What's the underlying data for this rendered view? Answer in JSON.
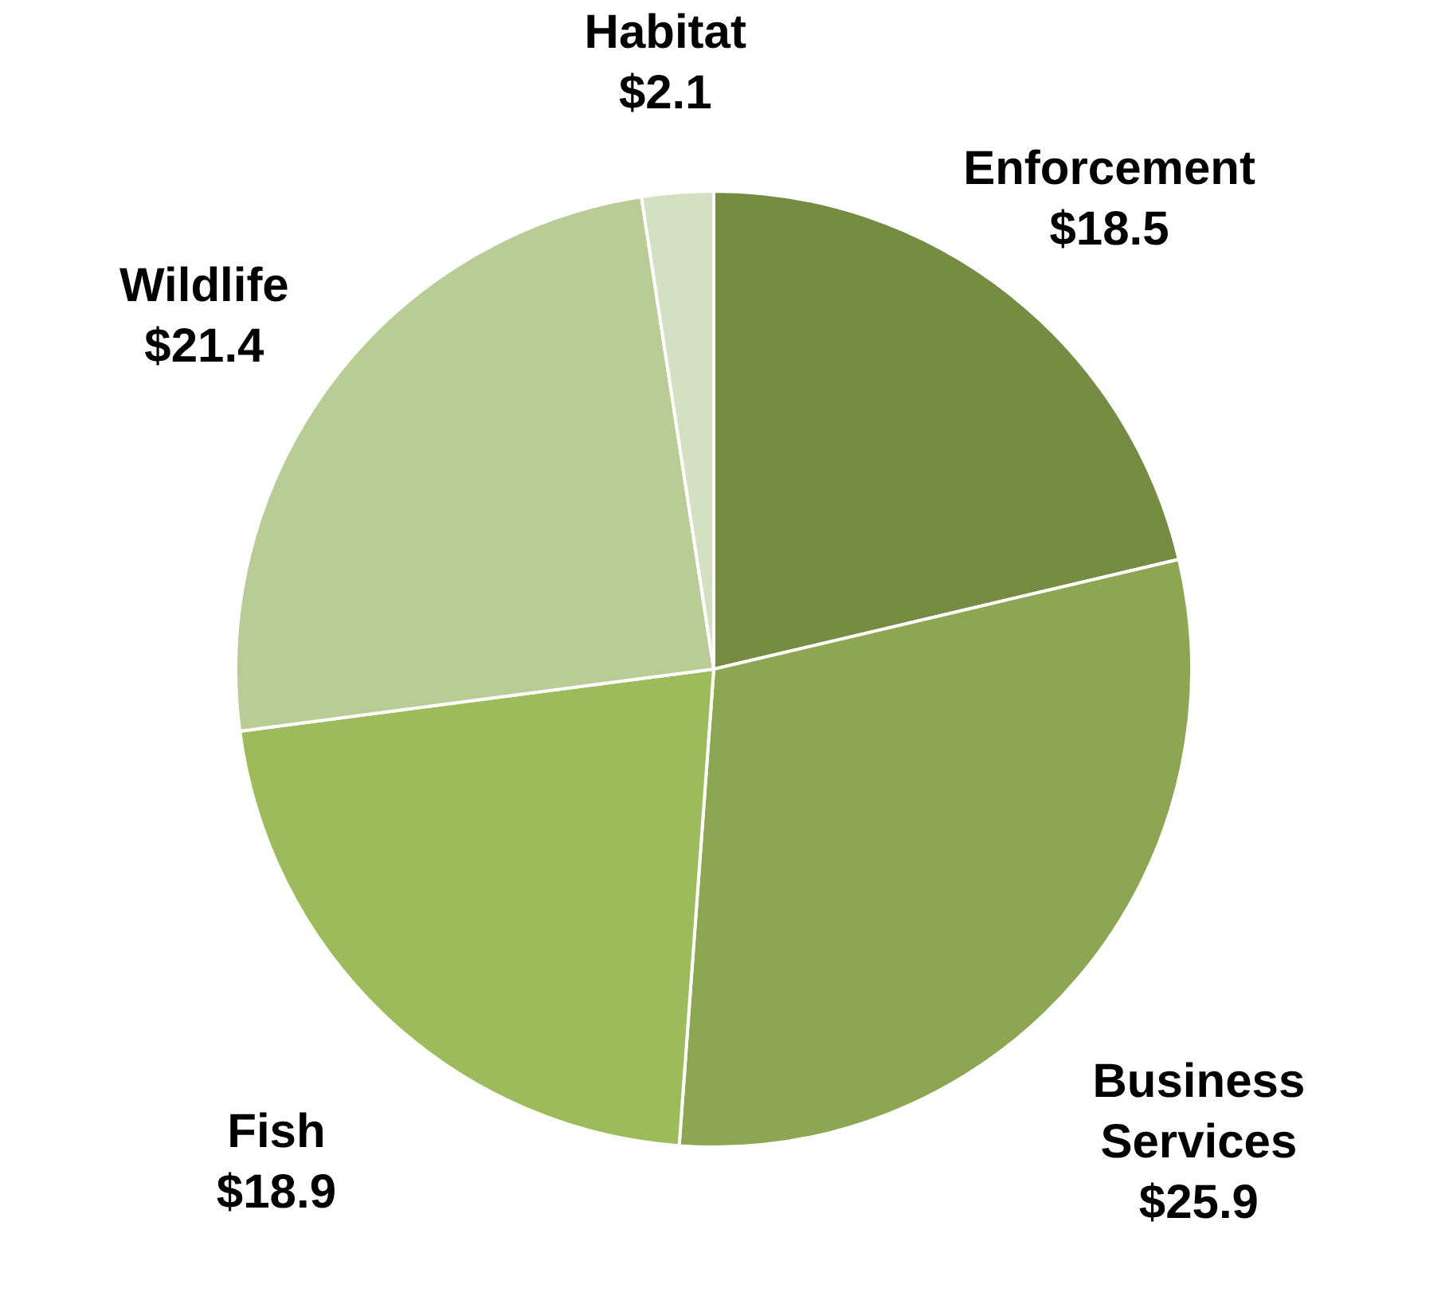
{
  "chart_data": {
    "type": "pie",
    "categories": [
      "Enforcement",
      "Business Services",
      "Fish",
      "Wildlife",
      "Habitat"
    ],
    "values": [
      18.5,
      25.9,
      18.9,
      21.4,
      2.1
    ],
    "value_labels": [
      "$18.5",
      "$25.9",
      "$18.9",
      "$21.4",
      "$2.1"
    ],
    "colors": [
      "#778c43",
      "#8ca651",
      "#9dbb5a",
      "#b9cc95",
      "#d4e0c2"
    ]
  }
}
